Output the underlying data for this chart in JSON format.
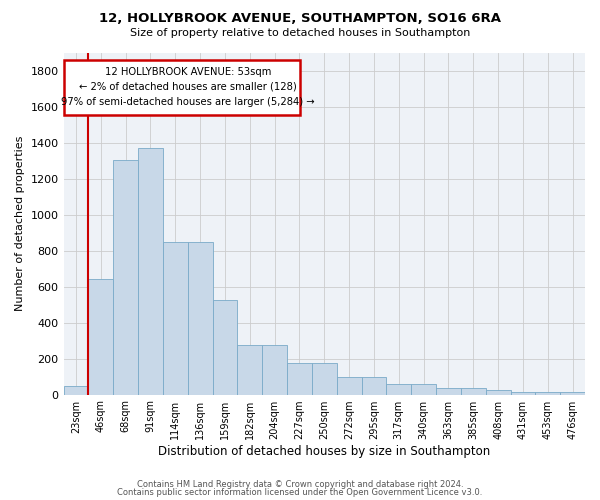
{
  "title_line1": "12, HOLLYBROOK AVENUE, SOUTHAMPTON, SO16 6RA",
  "title_line2": "Size of property relative to detached houses in Southampton",
  "xlabel": "Distribution of detached houses by size in Southampton",
  "ylabel": "Number of detached properties",
  "categories": [
    "23sqm",
    "46sqm",
    "68sqm",
    "91sqm",
    "114sqm",
    "136sqm",
    "159sqm",
    "182sqm",
    "204sqm",
    "227sqm",
    "250sqm",
    "272sqm",
    "295sqm",
    "317sqm",
    "340sqm",
    "363sqm",
    "385sqm",
    "408sqm",
    "431sqm",
    "453sqm",
    "476sqm"
  ],
  "values": [
    50,
    640,
    1305,
    1370,
    845,
    845,
    525,
    275,
    275,
    175,
    175,
    100,
    100,
    60,
    60,
    37,
    37,
    25,
    15,
    15,
    15
  ],
  "bar_color": "#c8d8e8",
  "bar_edge_color": "#7aaac8",
  "grid_color": "#cccccc",
  "vline_color": "#cc0000",
  "annotation_line1": "12 HOLLYBROOK AVENUE: 53sqm",
  "annotation_line2": "← 2% of detached houses are smaller (128)",
  "annotation_line3": "97% of semi-detached houses are larger (5,284) →",
  "annotation_box_color": "#cc0000",
  "ylim": [
    0,
    1900
  ],
  "yticks": [
    0,
    200,
    400,
    600,
    800,
    1000,
    1200,
    1400,
    1600,
    1800
  ],
  "footer_line1": "Contains HM Land Registry data © Crown copyright and database right 2024.",
  "footer_line2": "Contains public sector information licensed under the Open Government Licence v3.0.",
  "bg_color": "#eef2f7"
}
